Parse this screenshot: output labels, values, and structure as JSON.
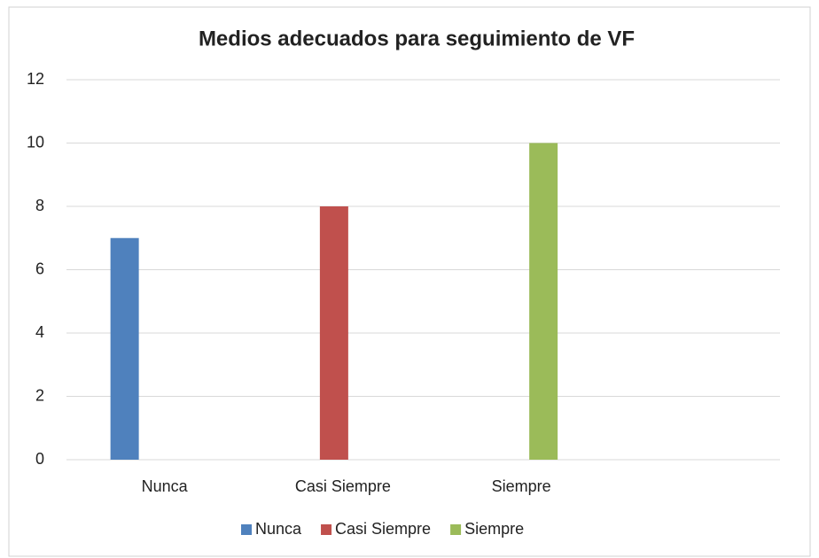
{
  "chart_data": {
    "type": "bar",
    "title": "Medios adecuados para seguimiento de VF",
    "categories": [
      "Nunca",
      "Casi Siempre",
      "Siempre",
      null
    ],
    "series": [
      {
        "name": "Nunca",
        "color": "#4f81bd",
        "values": [
          7,
          0,
          0,
          0
        ]
      },
      {
        "name": "Casi Siempre",
        "color": "#c0504d",
        "values": [
          0,
          8,
          0,
          0
        ]
      },
      {
        "name": "Siempre",
        "color": "#9bbb59",
        "values": [
          0,
          0,
          10,
          0
        ]
      }
    ],
    "ylim": [
      0,
      12
    ],
    "yticks": [
      0,
      2,
      4,
      6,
      8,
      10,
      12
    ],
    "grid": true,
    "legend": "bottom"
  }
}
